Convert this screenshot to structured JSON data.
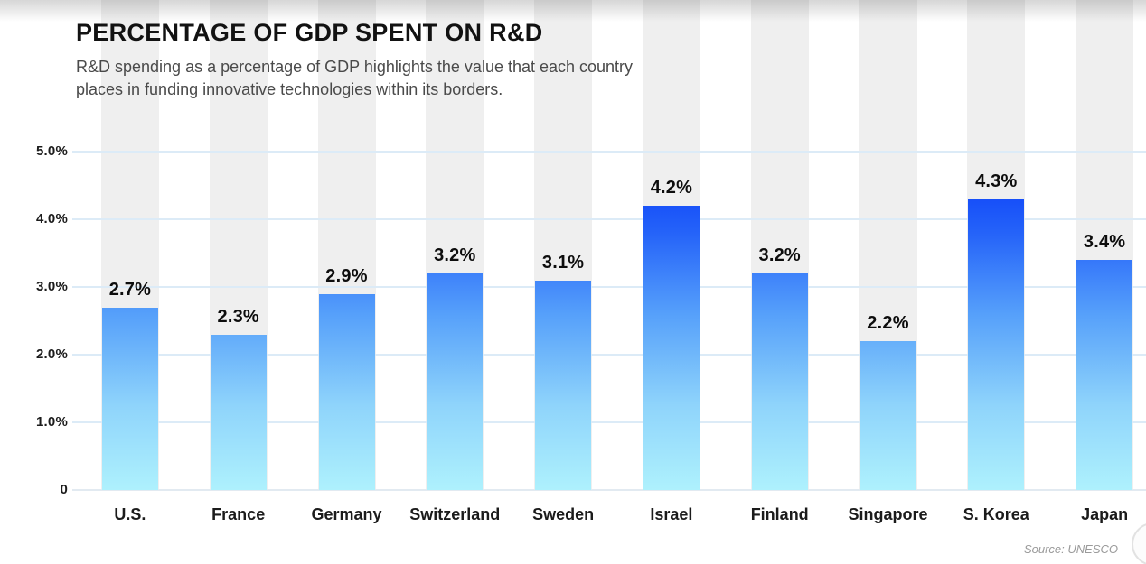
{
  "header": {
    "title": "PERCENTAGE OF GDP SPENT ON R&D",
    "subtitle": "R&D spending as a percentage of GDP highlights the value that each country places in funding innovative technologies within its borders."
  },
  "source": "Source: UNESCO",
  "chart_data": {
    "type": "bar",
    "title": "PERCENTAGE OF GDP SPENT ON R&D",
    "xlabel": "",
    "ylabel": "",
    "categories": [
      "U.S.",
      "France",
      "Germany",
      "Switzerland",
      "Sweden",
      "Israel",
      "Finland",
      "Singapore",
      "S. Korea",
      "Japan"
    ],
    "values": [
      2.7,
      2.3,
      2.9,
      3.2,
      3.1,
      4.2,
      3.2,
      2.2,
      4.3,
      3.4
    ],
    "value_labels": [
      "2.7%",
      "2.3%",
      "2.9%",
      "3.2%",
      "3.1%",
      "4.2%",
      "3.2%",
      "2.2%",
      "4.3%",
      "3.4%"
    ],
    "ylim": [
      0,
      5
    ],
    "y_tick_values": [
      5,
      4,
      3,
      2,
      1,
      0
    ],
    "y_tick_labels": [
      "5.0%",
      "4.0%",
      "3.0%",
      "2.0%",
      "1.0%",
      "0"
    ],
    "grid": "horizontal",
    "legend": "none",
    "colors": {
      "bar_gradient_top": "#0334f9",
      "bar_gradient_bottom": "#aef1fd",
      "column_band": "#efefef",
      "gridline": "#dcebf7",
      "title_text": "#121212",
      "subtitle_text": "#4a4a4a",
      "source_text": "#9a9a9a"
    }
  }
}
